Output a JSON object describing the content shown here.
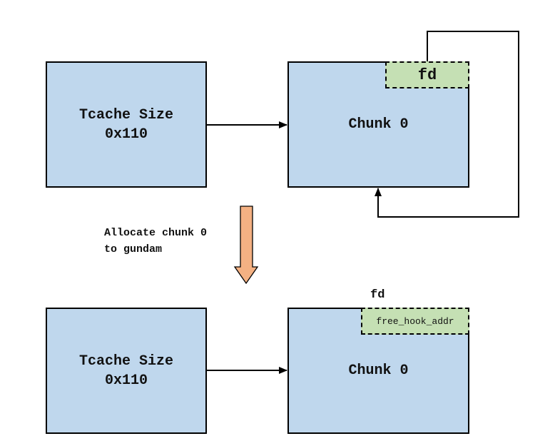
{
  "top": {
    "tcache_label": "Tcache Size\n0x110",
    "chunk_label": "Chunk 0",
    "fd_label": "fd"
  },
  "transition": {
    "caption": "Allocate chunk 0\nto gundam",
    "arrow_color": "#f4b183"
  },
  "bottom": {
    "tcache_label": "Tcache Size\n0x110",
    "chunk_label": "Chunk 0",
    "fd_caption": "fd",
    "fd_value": "free_hook_addr"
  },
  "colors": {
    "box_fill": "#bfd7ed",
    "fd_fill": "#c5e0b4",
    "stroke": "#000000"
  }
}
